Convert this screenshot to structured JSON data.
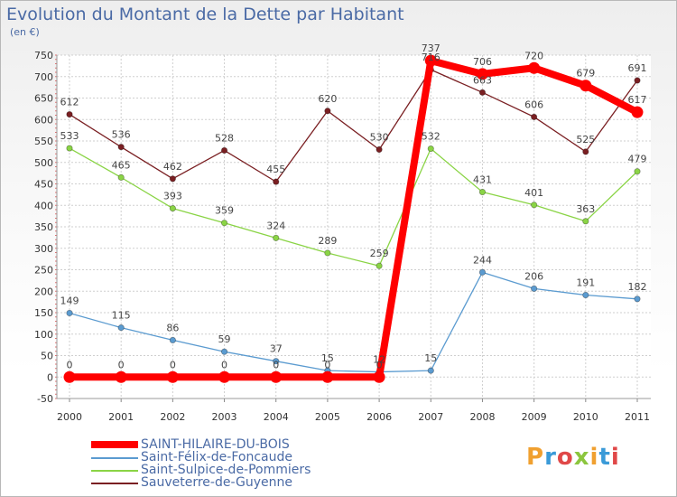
{
  "header": {
    "title": "Evolution du Montant de la Dette par Habitant",
    "unit": "(en €)"
  },
  "logo": {
    "text": "Proxiti",
    "colors": [
      "#f0a030",
      "#3a9ad8",
      "#e04848",
      "#8cc63e",
      "#f0a030",
      "#3a9ad8",
      "#e04848"
    ]
  },
  "chart_data": {
    "type": "line",
    "title": "Evolution du Montant de la Dette par Habitant",
    "ylabel": "(en €)",
    "xlabel": "",
    "x": [
      "2000",
      "2001",
      "2002",
      "2003",
      "2004",
      "2005",
      "2006",
      "2007",
      "2008",
      "2009",
      "2010",
      "2011"
    ],
    "ylim": [
      -50,
      750
    ],
    "yticks": [
      "-50",
      "0",
      "50",
      "100",
      "150",
      "200",
      "250",
      "300",
      "350",
      "400",
      "450",
      "500",
      "550",
      "600",
      "650",
      "700",
      "750"
    ],
    "grid": true,
    "legend": "bottom-left",
    "series": [
      {
        "name": "Sauveterre-de-Guyenne",
        "color": "#7a1f22",
        "values": [
          612,
          536,
          462,
          528,
          455,
          620,
          530,
          716,
          663,
          606,
          525,
          691
        ],
        "labels": [
          "612",
          "536",
          "462",
          "528",
          "455",
          "620",
          "530",
          "716",
          "663",
          "606",
          "525",
          "691"
        ]
      },
      {
        "name": "Saint-Sulpice-de-Pommiers",
        "color": "#8ad445",
        "values": [
          533,
          465,
          393,
          359,
          324,
          289,
          259,
          532,
          431,
          401,
          363,
          479
        ],
        "labels": [
          "533",
          "465",
          "393",
          "359",
          "324",
          "289",
          "259",
          "532",
          "431",
          "401",
          "363",
          "479"
        ]
      },
      {
        "name": "Saint-Félix-de-Foncaude",
        "color": "#5b9bd0",
        "values": [
          149,
          115,
          86,
          59,
          37,
          15,
          12,
          15,
          244,
          206,
          191,
          182
        ],
        "labels": [
          "149",
          "115",
          "86",
          "59",
          "37",
          "15",
          "12",
          "15",
          "244",
          "206",
          "191",
          "182"
        ]
      },
      {
        "name": "SAINT-HILAIRE-DU-BOIS",
        "color": "#ff0000",
        "values": [
          0,
          0,
          0,
          0,
          0,
          0,
          0,
          737,
          706,
          720,
          679,
          617
        ],
        "labels": [
          "0",
          "0",
          "0",
          "0",
          "0",
          "0",
          "0",
          "737",
          "706",
          "720",
          "679",
          "617"
        ]
      }
    ]
  },
  "legend": {
    "items": [
      {
        "label": "SAINT-HILAIRE-DU-BOIS",
        "color": "#ff0000",
        "thick": true
      },
      {
        "label": "Saint-Félix-de-Foncaude",
        "color": "#5b9bd0",
        "thick": false
      },
      {
        "label": "Saint-Sulpice-de-Pommiers",
        "color": "#8ad445",
        "thick": false
      },
      {
        "label": "Sauveterre-de-Guyenne",
        "color": "#7a1f22",
        "thick": false
      }
    ]
  }
}
